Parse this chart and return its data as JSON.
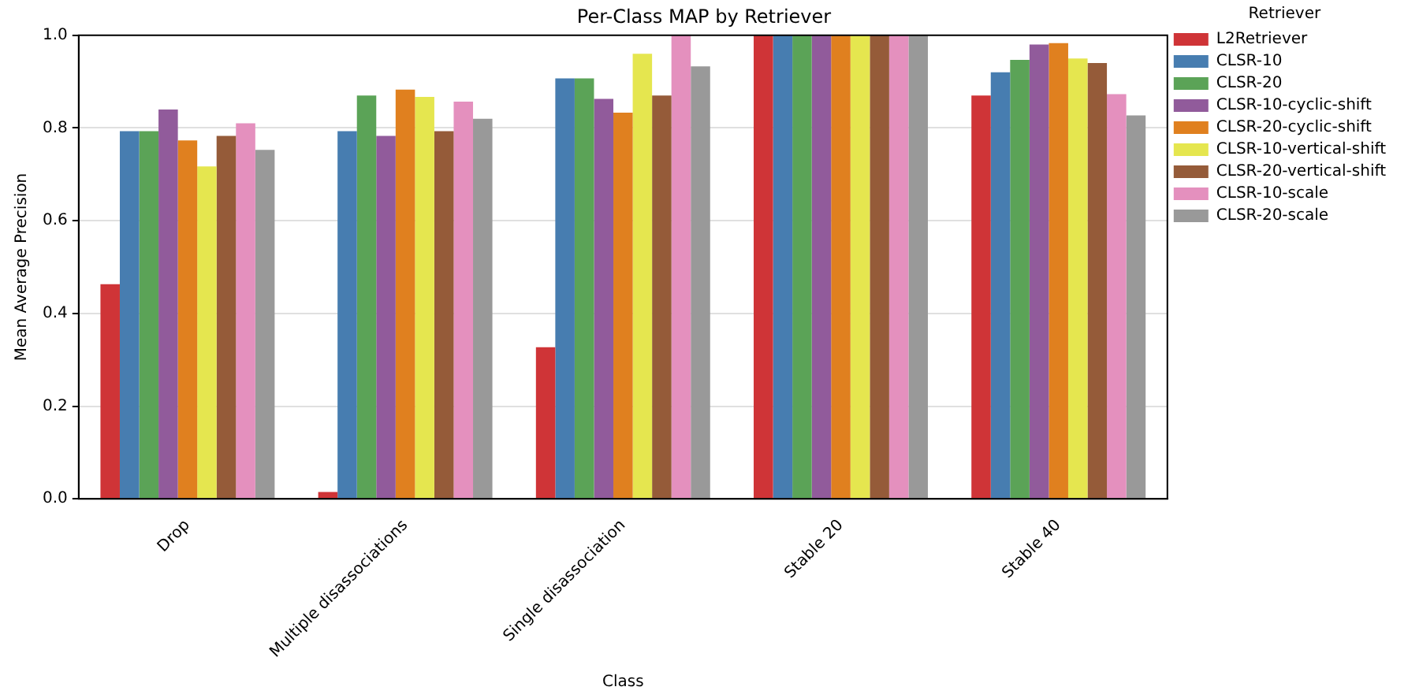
{
  "chart_data": {
    "type": "bar",
    "title": "Per-Class MAP by Retriever",
    "xlabel": "Class",
    "ylabel": "Mean Average Precision",
    "legend_title": "Retriever",
    "legend": "right",
    "grid": "y",
    "categories": [
      "Drop",
      "Multiple disassociations",
      "Single disassociation",
      "Stable 20",
      "Stable 40"
    ],
    "ylim": [
      0,
      1
    ],
    "yticks": [
      {
        "value": 0,
        "label": "0.0"
      },
      {
        "value": 0.2,
        "label": "0.2"
      },
      {
        "value": 0.4,
        "label": "0.4"
      },
      {
        "value": 0.6,
        "label": "0.6"
      },
      {
        "value": 0.8,
        "label": "0.8"
      },
      {
        "value": 1,
        "label": "1.0"
      }
    ],
    "series": [
      {
        "name": "L2Retriever",
        "color": "#cf3437",
        "values": [
          0.463,
          0.015,
          0.327,
          1.0,
          0.87
        ]
      },
      {
        "name": "CLSR-10",
        "color": "#477db0",
        "values": [
          0.793,
          0.793,
          0.907,
          1.0,
          0.92
        ]
      },
      {
        "name": "CLSR-20",
        "color": "#5ba357",
        "values": [
          0.793,
          0.87,
          0.907,
          1.0,
          0.947
        ]
      },
      {
        "name": "CLSR-10-cyclic-shift",
        "color": "#915b9b",
        "values": [
          0.84,
          0.783,
          0.863,
          1.0,
          0.98
        ]
      },
      {
        "name": "CLSR-20-cyclic-shift",
        "color": "#e0801f",
        "values": [
          0.773,
          0.883,
          0.833,
          1.0,
          0.983
        ]
      },
      {
        "name": "CLSR-10-vertical-shift",
        "color": "#e5e64f",
        "values": [
          0.717,
          0.867,
          0.96,
          1.0,
          0.95
        ]
      },
      {
        "name": "CLSR-20-vertical-shift",
        "color": "#955b39",
        "values": [
          0.783,
          0.793,
          0.87,
          1.0,
          0.94
        ]
      },
      {
        "name": "CLSR-10-scale",
        "color": "#e490be",
        "values": [
          0.81,
          0.857,
          1.0,
          1.0,
          0.873
        ]
      },
      {
        "name": "CLSR-20-scale",
        "color": "#999999",
        "values": [
          0.753,
          0.82,
          0.933,
          1.0,
          0.827
        ]
      }
    ]
  }
}
